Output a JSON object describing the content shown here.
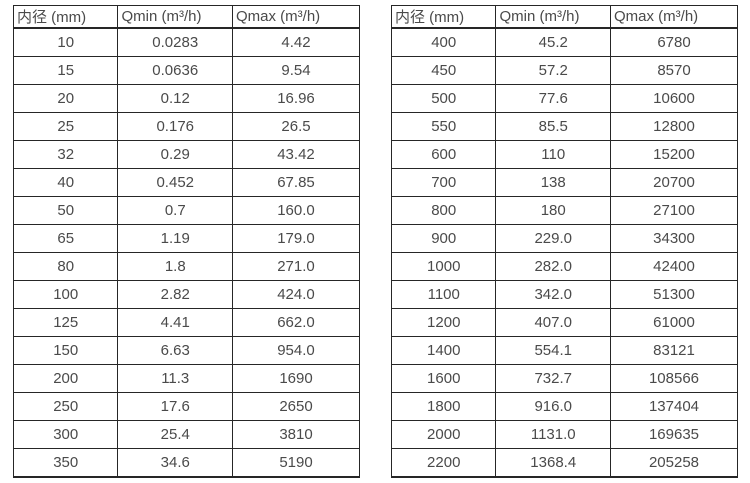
{
  "style": {
    "text_color": "#4a4a4a",
    "border_color": "#262626",
    "background_color": "#ffffff"
  },
  "tables": [
    {
      "name": "flow-table-small-diameters",
      "headers": [
        "内径 (mm)",
        "Qmin (m³/h)",
        "Qmax (m³/h)"
      ],
      "rows": [
        [
          "10",
          "0.0283",
          "4.42"
        ],
        [
          "15",
          "0.0636",
          "9.54"
        ],
        [
          "20",
          "0.12",
          "16.96"
        ],
        [
          "25",
          "0.176",
          "26.5"
        ],
        [
          "32",
          "0.29",
          "43.42"
        ],
        [
          "40",
          "0.452",
          "67.85"
        ],
        [
          "50",
          "0.7",
          "160.0"
        ],
        [
          "65",
          "1.19",
          "179.0"
        ],
        [
          "80",
          "1.8",
          "271.0"
        ],
        [
          "100",
          "2.82",
          "424.0"
        ],
        [
          "125",
          "4.41",
          "662.0"
        ],
        [
          "150",
          "6.63",
          "954.0"
        ],
        [
          "200",
          "11.3",
          "1690"
        ],
        [
          "250",
          "17.6",
          "2650"
        ],
        [
          "300",
          "25.4",
          "3810"
        ],
        [
          "350",
          "34.6",
          "5190"
        ]
      ]
    },
    {
      "name": "flow-table-large-diameters",
      "headers": [
        "内径 (mm)",
        "Qmin (m³/h)",
        "Qmax (m³/h)"
      ],
      "rows": [
        [
          "400",
          "45.2",
          "6780"
        ],
        [
          "450",
          "57.2",
          "8570"
        ],
        [
          "500",
          "77.6",
          "10600"
        ],
        [
          "550",
          "85.5",
          "12800"
        ],
        [
          "600",
          "110",
          "15200"
        ],
        [
          "700",
          "138",
          "20700"
        ],
        [
          "800",
          "180",
          "27100"
        ],
        [
          "900",
          "229.0",
          "34300"
        ],
        [
          "1000",
          "282.0",
          "42400"
        ],
        [
          "1100",
          "342.0",
          "51300"
        ],
        [
          "1200",
          "407.0",
          "61000"
        ],
        [
          "1400",
          "554.1",
          "83121"
        ],
        [
          "1600",
          "732.7",
          "108566"
        ],
        [
          "1800",
          "916.0",
          "137404"
        ],
        [
          "2000",
          "1131.0",
          "169635"
        ],
        [
          "2200",
          "1368.4",
          "205258"
        ]
      ]
    }
  ]
}
